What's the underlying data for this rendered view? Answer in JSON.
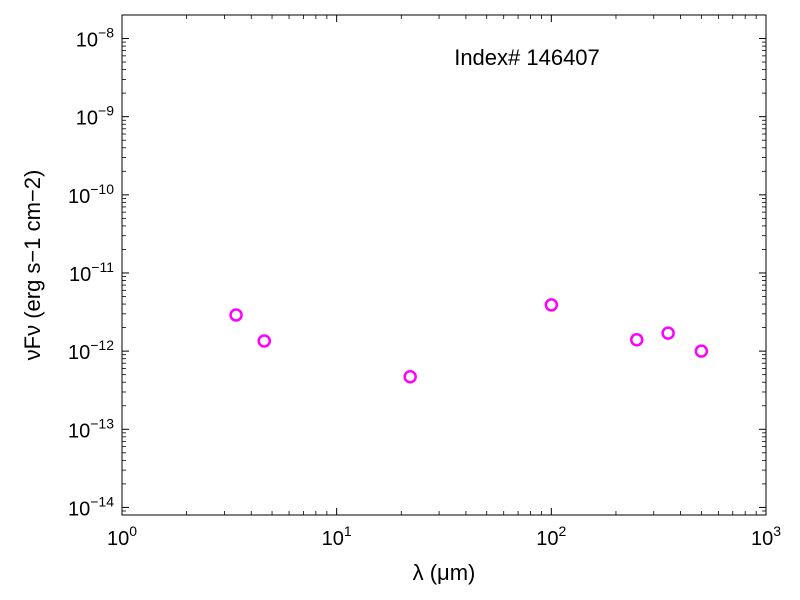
{
  "chart_data": {
    "type": "scatter",
    "title": "",
    "annotation": "Index# 146407",
    "xlabel": "λ (μm)",
    "ylabel": "νFν (erg s−1 cm−2)",
    "xscale": "log",
    "yscale": "log",
    "xlim": [
      1,
      1000
    ],
    "ylim": [
      8e-15,
      2e-08
    ],
    "grid": false,
    "x_ticks": [
      {
        "base": "10",
        "exp": "0",
        "value": 1
      },
      {
        "base": "10",
        "exp": "1",
        "value": 10
      },
      {
        "base": "10",
        "exp": "2",
        "value": 100
      },
      {
        "base": "10",
        "exp": "3",
        "value": 1000
      }
    ],
    "y_ticks": [
      {
        "base": "10",
        "exp": "−14",
        "value": 1e-14
      },
      {
        "base": "10",
        "exp": "−13",
        "value": 1e-13
      },
      {
        "base": "10",
        "exp": "−12",
        "value": 1e-12
      },
      {
        "base": "10",
        "exp": "−11",
        "value": 1e-11
      },
      {
        "base": "10",
        "exp": "−10",
        "value": 1e-10
      },
      {
        "base": "10",
        "exp": "−9",
        "value": 1e-09
      },
      {
        "base": "10",
        "exp": "−8",
        "value": 1e-08
      }
    ],
    "marker": {
      "shape": "open-circle",
      "color": "#ff00ff"
    },
    "series": [
      {
        "x": [
          3.4,
          4.6,
          22,
          100,
          250,
          350,
          500
        ],
        "y": [
          2.9e-12,
          1.35e-12,
          4.7e-13,
          3.9e-12,
          1.4e-12,
          1.7e-12,
          1e-12
        ]
      }
    ]
  }
}
